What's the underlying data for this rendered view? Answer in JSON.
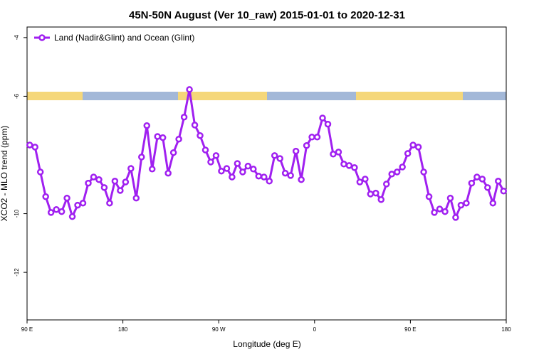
{
  "chart_data": {
    "type": "line",
    "title": "45N-50N August (Ver 10_raw)   2015-01-01 to 2020-12-31",
    "x_label": "Longitude (deg E)",
    "y_label": "XCO2 - MLO trend (ppm)",
    "xlim": [
      90,
      540
    ],
    "ylim": [
      -13.62,
      -3.64
    ],
    "xticks": [
      {
        "value": 90,
        "label": "90 E"
      },
      {
        "value": 180,
        "label": "180"
      },
      {
        "value": 270,
        "label": "90 W"
      },
      {
        "value": 360,
        "label": "0"
      },
      {
        "value": 450,
        "label": "90 E"
      },
      {
        "value": 540,
        "label": "180"
      }
    ],
    "yticks": [
      -4,
      -6,
      -10,
      -12
    ],
    "legend_position": "upper left",
    "series": [
      {
        "name": "Land (Nadir&Glint) and Ocean (Glint)",
        "color": "#a020f0",
        "x": [
          92.5,
          97.5,
          102.5,
          107.5,
          112.5,
          117.5,
          122.5,
          127.5,
          132.5,
          137.5,
          142.5,
          147.5,
          152.5,
          157.5,
          162.5,
          167.5,
          172.5,
          177.5,
          182.5,
          187.5,
          192.5,
          197.5,
          202.5,
          207.5,
          212.5,
          217.5,
          222.5,
          227.5,
          232.5,
          237.5,
          242.5,
          247.5,
          252.5,
          257.5,
          262.5,
          267.5,
          272.5,
          277.5,
          282.5,
          287.5,
          292.5,
          297.5,
          302.5,
          307.5,
          312.5,
          317.5,
          322.5,
          327.5,
          332.5,
          337.5,
          342.5,
          347.5,
          352.5,
          357.5,
          362.5,
          367.5,
          372.5,
          377.5,
          382.5,
          387.5,
          392.5,
          397.5,
          402.5,
          407.5,
          412.5,
          417.5,
          422.5,
          427.5,
          432.5,
          437.5,
          442.5,
          447.5,
          452.5,
          457.5,
          462.5,
          467.5,
          472.5,
          477.5,
          482.5,
          487.5,
          492.5,
          497.5,
          502.5,
          507.5,
          512.5,
          517.5,
          522.5,
          527.5,
          532.5,
          537.5
        ],
        "values": [
          -7.66,
          -7.73,
          -8.58,
          -9.42,
          -9.96,
          -9.86,
          -9.93,
          -9.47,
          -10.1,
          -9.71,
          -9.64,
          -8.96,
          -8.75,
          -8.84,
          -9.11,
          -9.64,
          -8.89,
          -9.21,
          -8.92,
          -8.46,
          -9.47,
          -8.07,
          -7.0,
          -8.48,
          -7.37,
          -7.41,
          -8.62,
          -7.92,
          -7.46,
          -6.71,
          -5.77,
          -6.98,
          -7.34,
          -7.83,
          -8.24,
          -8.02,
          -8.55,
          -8.46,
          -8.75,
          -8.29,
          -8.58,
          -8.38,
          -8.48,
          -8.72,
          -8.75,
          -8.89,
          -8.02,
          -8.12,
          -8.62,
          -8.7,
          -7.87,
          -8.84,
          -7.68,
          -7.39,
          -7.39,
          -6.74,
          -6.95,
          -7.97,
          -7.9,
          -8.31,
          -8.36,
          -8.43,
          -8.92,
          -8.82,
          -9.33,
          -9.3,
          -9.52,
          -8.99,
          -8.65,
          -8.58,
          -8.41,
          -7.95,
          -7.66,
          -7.73,
          -8.58,
          -9.42,
          -9.96,
          -9.84,
          -9.93,
          -9.47,
          -10.13,
          -9.71,
          -9.64,
          -8.96,
          -8.75,
          -8.82,
          -9.11,
          -9.64,
          -8.89,
          -9.23
        ]
      }
    ]
  }
}
